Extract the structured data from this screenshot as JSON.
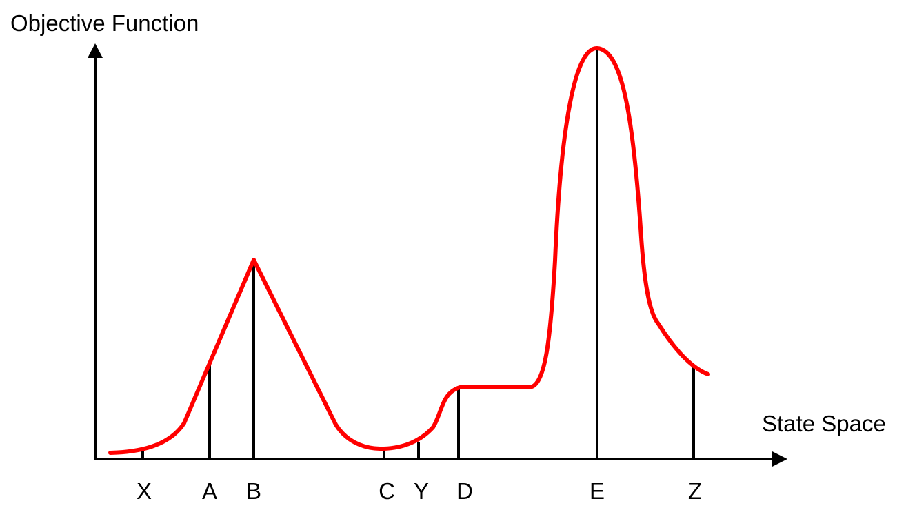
{
  "y_axis_label": "Objective Function",
  "x_axis_label": "State Space",
  "points": [
    {
      "id": "x",
      "label": "X"
    },
    {
      "id": "a",
      "label": "A"
    },
    {
      "id": "b",
      "label": "B"
    },
    {
      "id": "c",
      "label": "C"
    },
    {
      "id": "y",
      "label": "Y"
    },
    {
      "id": "d",
      "label": "D"
    },
    {
      "id": "e",
      "label": "E"
    },
    {
      "id": "z",
      "label": "Z"
    }
  ],
  "colors": {
    "curve": "#ff0000",
    "axes": "#000000",
    "markers": "#000000"
  }
}
